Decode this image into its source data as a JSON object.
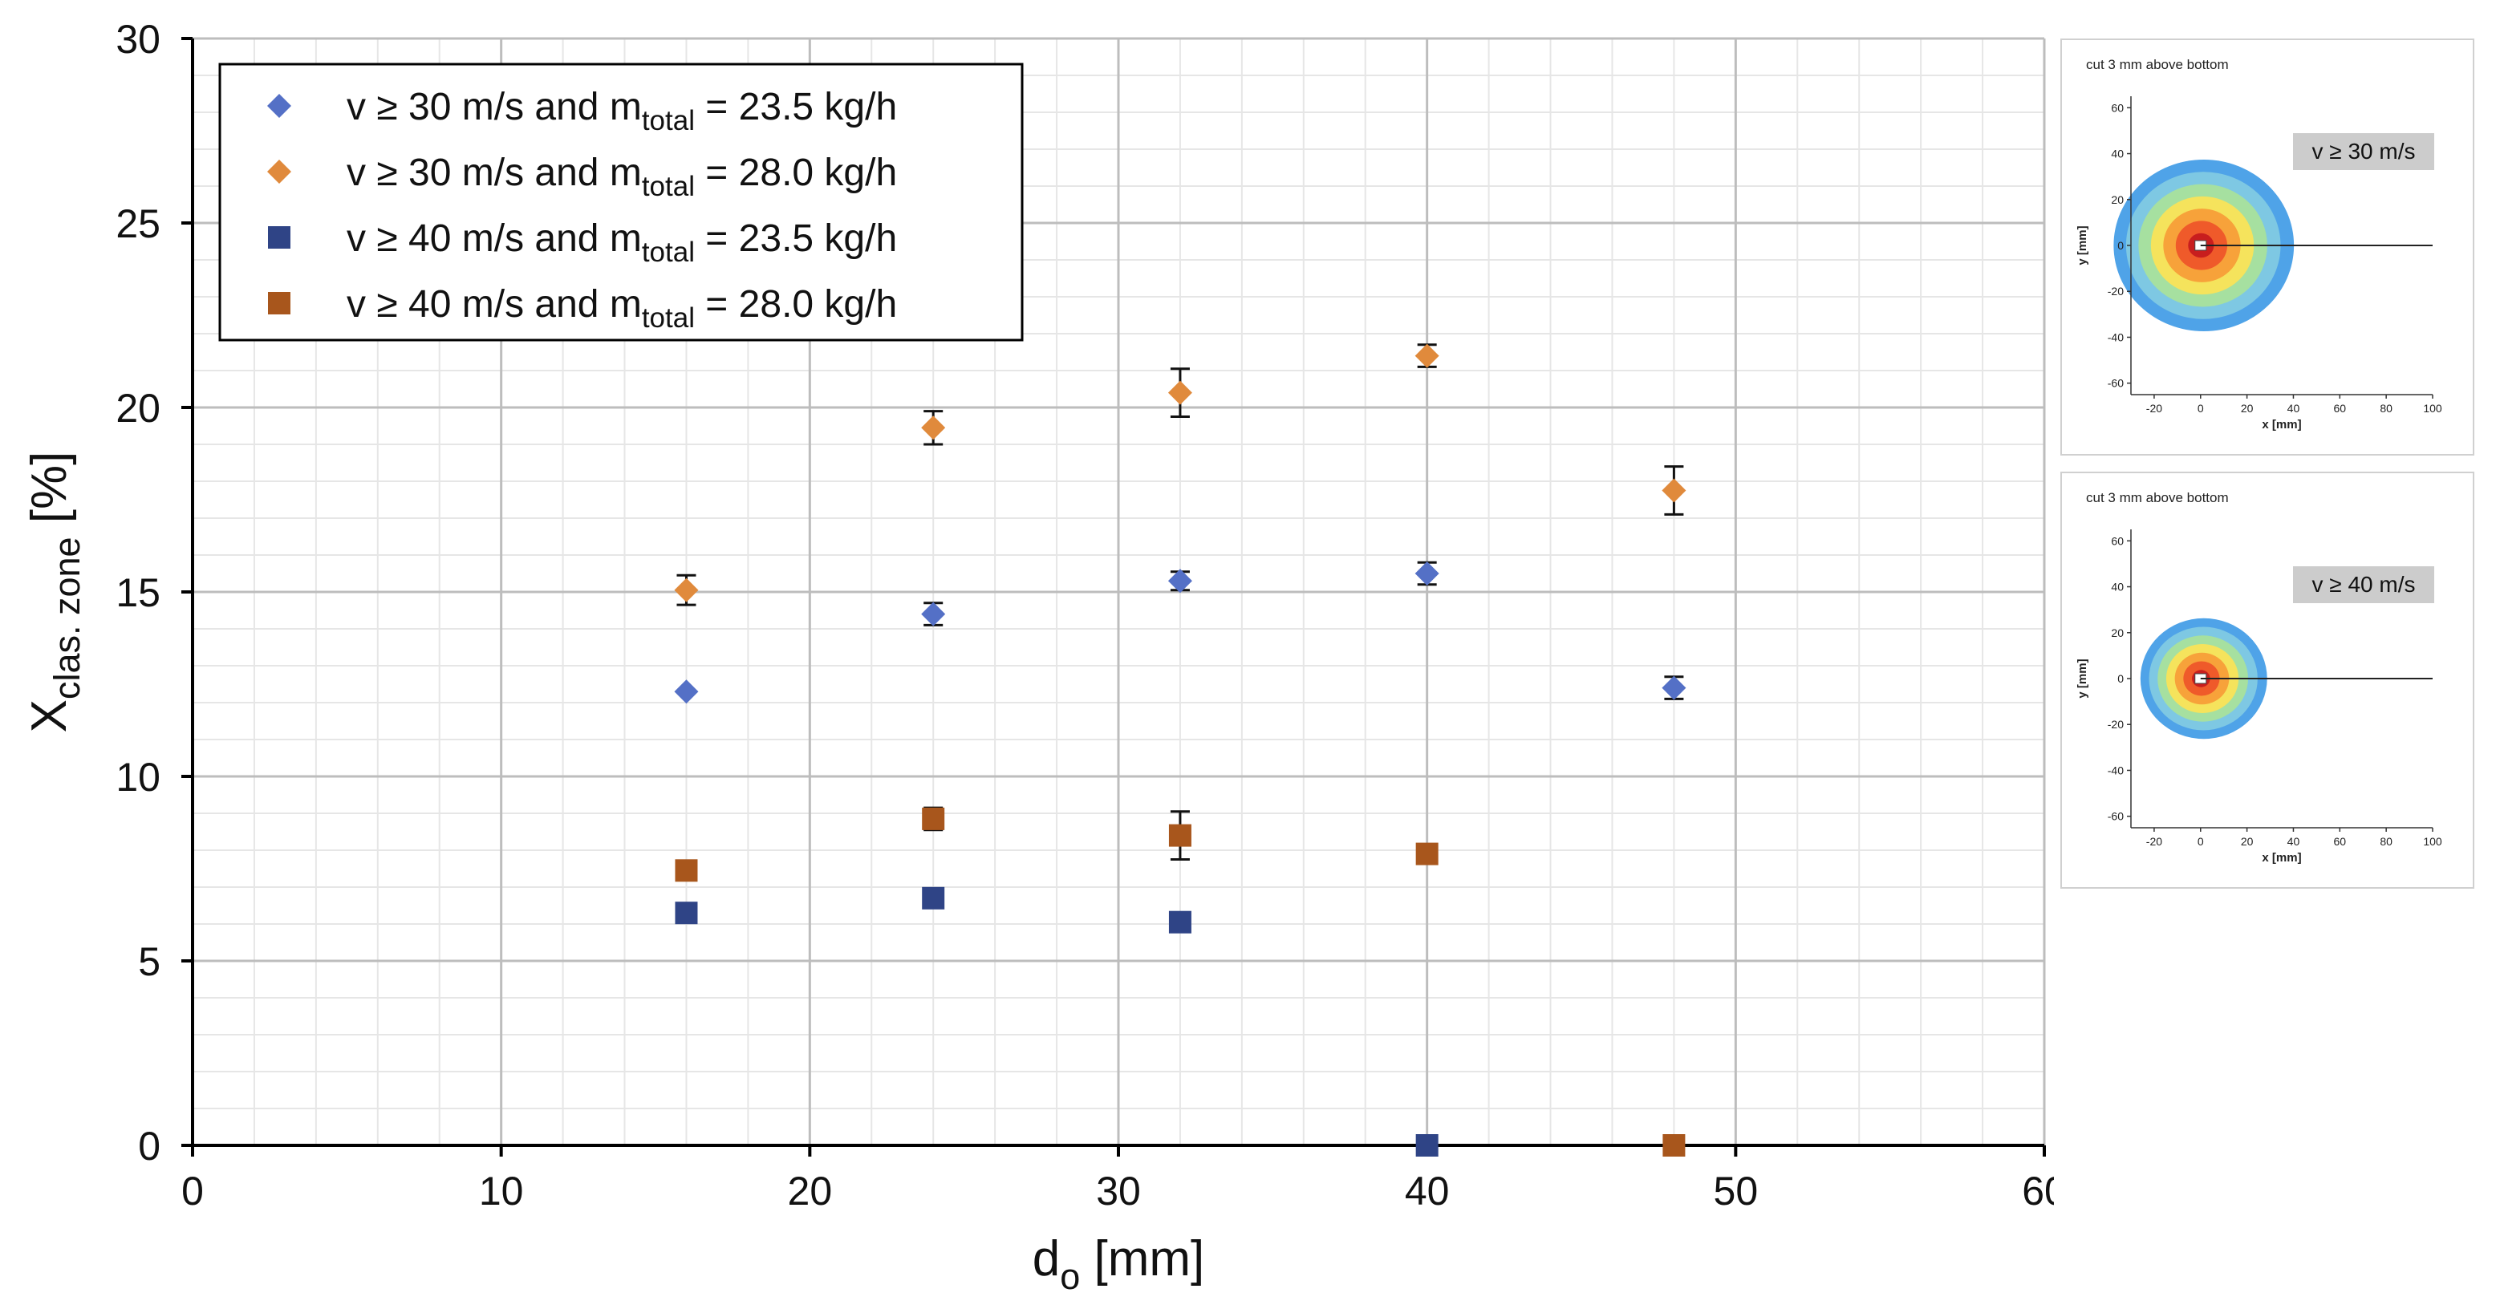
{
  "chart_data": {
    "type": "scatter",
    "title": "",
    "xlabel": {
      "base": "d",
      "sub": "o",
      "unit": " [mm]"
    },
    "ylabel": {
      "base": "X",
      "sub": "clas. zone",
      "unit": " [%]"
    },
    "xlim": [
      0,
      60
    ],
    "ylim": [
      0,
      30
    ],
    "xticks": [
      0,
      10,
      20,
      30,
      40,
      50,
      60
    ],
    "yticks": [
      0,
      5,
      10,
      15,
      20,
      25,
      30
    ],
    "x_minor_step": 2,
    "y_minor_step": 1,
    "grid": true,
    "legend_position": "top-left",
    "series": [
      {
        "id": "s1",
        "marker": "diamond",
        "color": "#5470c6",
        "label": {
          "pre": "v ≥ 30 m/s and m",
          "sub": "total",
          "post": " = 23.5 kg/h"
        },
        "points": [
          {
            "x": 16,
            "y": 12.3
          },
          {
            "x": 24,
            "y": 14.4,
            "err": 0.3
          },
          {
            "x": 32,
            "y": 15.3,
            "err": 0.25
          },
          {
            "x": 40,
            "y": 15.5,
            "err": 0.3
          },
          {
            "x": 48,
            "y": 12.4,
            "err": 0.3
          }
        ]
      },
      {
        "id": "s2",
        "marker": "diamond",
        "color": "#e08a3c",
        "label": {
          "pre": "v ≥ 30 m/s and m",
          "sub": "total",
          "post": " = 28.0 kg/h"
        },
        "points": [
          {
            "x": 16,
            "y": 15.05,
            "err": 0.4
          },
          {
            "x": 24,
            "y": 19.45,
            "err": 0.45
          },
          {
            "x": 32,
            "y": 20.4,
            "err": 0.65
          },
          {
            "x": 40,
            "y": 21.4,
            "err": 0.3
          },
          {
            "x": 48,
            "y": 17.75,
            "err": 0.65
          }
        ]
      },
      {
        "id": "s3",
        "marker": "square",
        "color": "#2f4486",
        "label": {
          "pre": "v ≥ 40 m/s and m",
          "sub": "total",
          "post": " = 23.5 kg/h"
        },
        "points": [
          {
            "x": 16,
            "y": 6.3,
            "err": 0.15
          },
          {
            "x": 24,
            "y": 6.7
          },
          {
            "x": 32,
            "y": 6.05
          },
          {
            "x": 40,
            "y": 0
          }
        ]
      },
      {
        "id": "s4",
        "marker": "square",
        "color": "#a8561c",
        "label": {
          "pre": "v ≥ 40 m/s and m",
          "sub": "total",
          "post": " = 28.0 kg/h"
        },
        "points": [
          {
            "x": 16,
            "y": 7.45
          },
          {
            "x": 24,
            "y": 8.85,
            "err": 0.3
          },
          {
            "x": 32,
            "y": 8.4,
            "err": 0.65
          },
          {
            "x": 40,
            "y": 7.9
          },
          {
            "x": 48,
            "y": 0
          }
        ]
      }
    ]
  },
  "insets": [
    {
      "title": "cut 3 mm above bottom",
      "badge": "v ≥ 30 m/s",
      "xlabel": "x [mm]",
      "ylabel": "y [mm]",
      "xticks": [
        -20,
        0,
        20,
        40,
        60,
        80,
        100
      ],
      "yticks": [
        60,
        40,
        20,
        0,
        -20,
        -40,
        -60
      ],
      "plume_radius_mm": 37
    },
    {
      "title": "cut 3 mm above bottom",
      "badge": "v ≥ 40 m/s",
      "xlabel": "x [mm]",
      "ylabel": "y [mm]",
      "xticks": [
        -20,
        0,
        20,
        40,
        60,
        80,
        100
      ],
      "yticks": [
        60,
        40,
        20,
        0,
        -20,
        -40,
        -60
      ],
      "plume_radius_mm": 26
    }
  ],
  "colors": {
    "plume": [
      "#4fa3e8",
      "#7ec8e3",
      "#a6e0a0",
      "#f5e35c",
      "#f7a23a",
      "#ef5a2a",
      "#c81e1e"
    ],
    "grid_major": "#bdbdbd",
    "grid_minor": "#e6e6e6",
    "badge_bg": "#cccccc"
  }
}
